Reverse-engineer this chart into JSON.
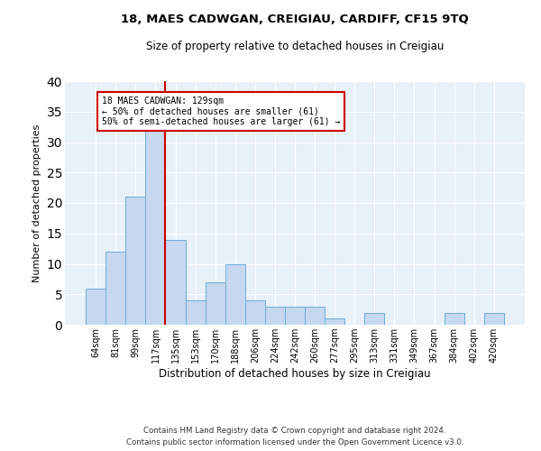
{
  "title1": "18, MAES CADWGAN, CREIGIAU, CARDIFF, CF15 9TQ",
  "title2": "Size of property relative to detached houses in Creigiau",
  "xlabel": "Distribution of detached houses by size in Creigiau",
  "ylabel": "Number of detached properties",
  "categories": [
    "64sqm",
    "81sqm",
    "99sqm",
    "117sqm",
    "135sqm",
    "153sqm",
    "170sqm",
    "188sqm",
    "206sqm",
    "224sqm",
    "242sqm",
    "260sqm",
    "277sqm",
    "295sqm",
    "313sqm",
    "331sqm",
    "349sqm",
    "367sqm",
    "384sqm",
    "402sqm",
    "420sqm"
  ],
  "values": [
    6,
    12,
    21,
    33,
    14,
    4,
    7,
    10,
    4,
    3,
    3,
    3,
    1,
    0,
    2,
    0,
    0,
    0,
    2,
    0,
    2
  ],
  "bar_color": "#c5d8f0",
  "bar_edge_color": "#6aaed6",
  "background_color": "#e8f0f8",
  "vline_color": "#cc0000",
  "vline_x_index": 3.5,
  "annotation_text": "18 MAES CADWGAN: 129sqm\n← 50% of detached houses are smaller (61)\n50% of semi-detached houses are larger (61) →",
  "annotation_box_color": "#cc0000",
  "footer": "Contains HM Land Registry data © Crown copyright and database right 2024.\nContains public sector information licensed under the Open Government Licence v3.0.",
  "ylim": [
    0,
    40
  ],
  "yticks": [
    0,
    5,
    10,
    15,
    20,
    25,
    30,
    35,
    40
  ]
}
